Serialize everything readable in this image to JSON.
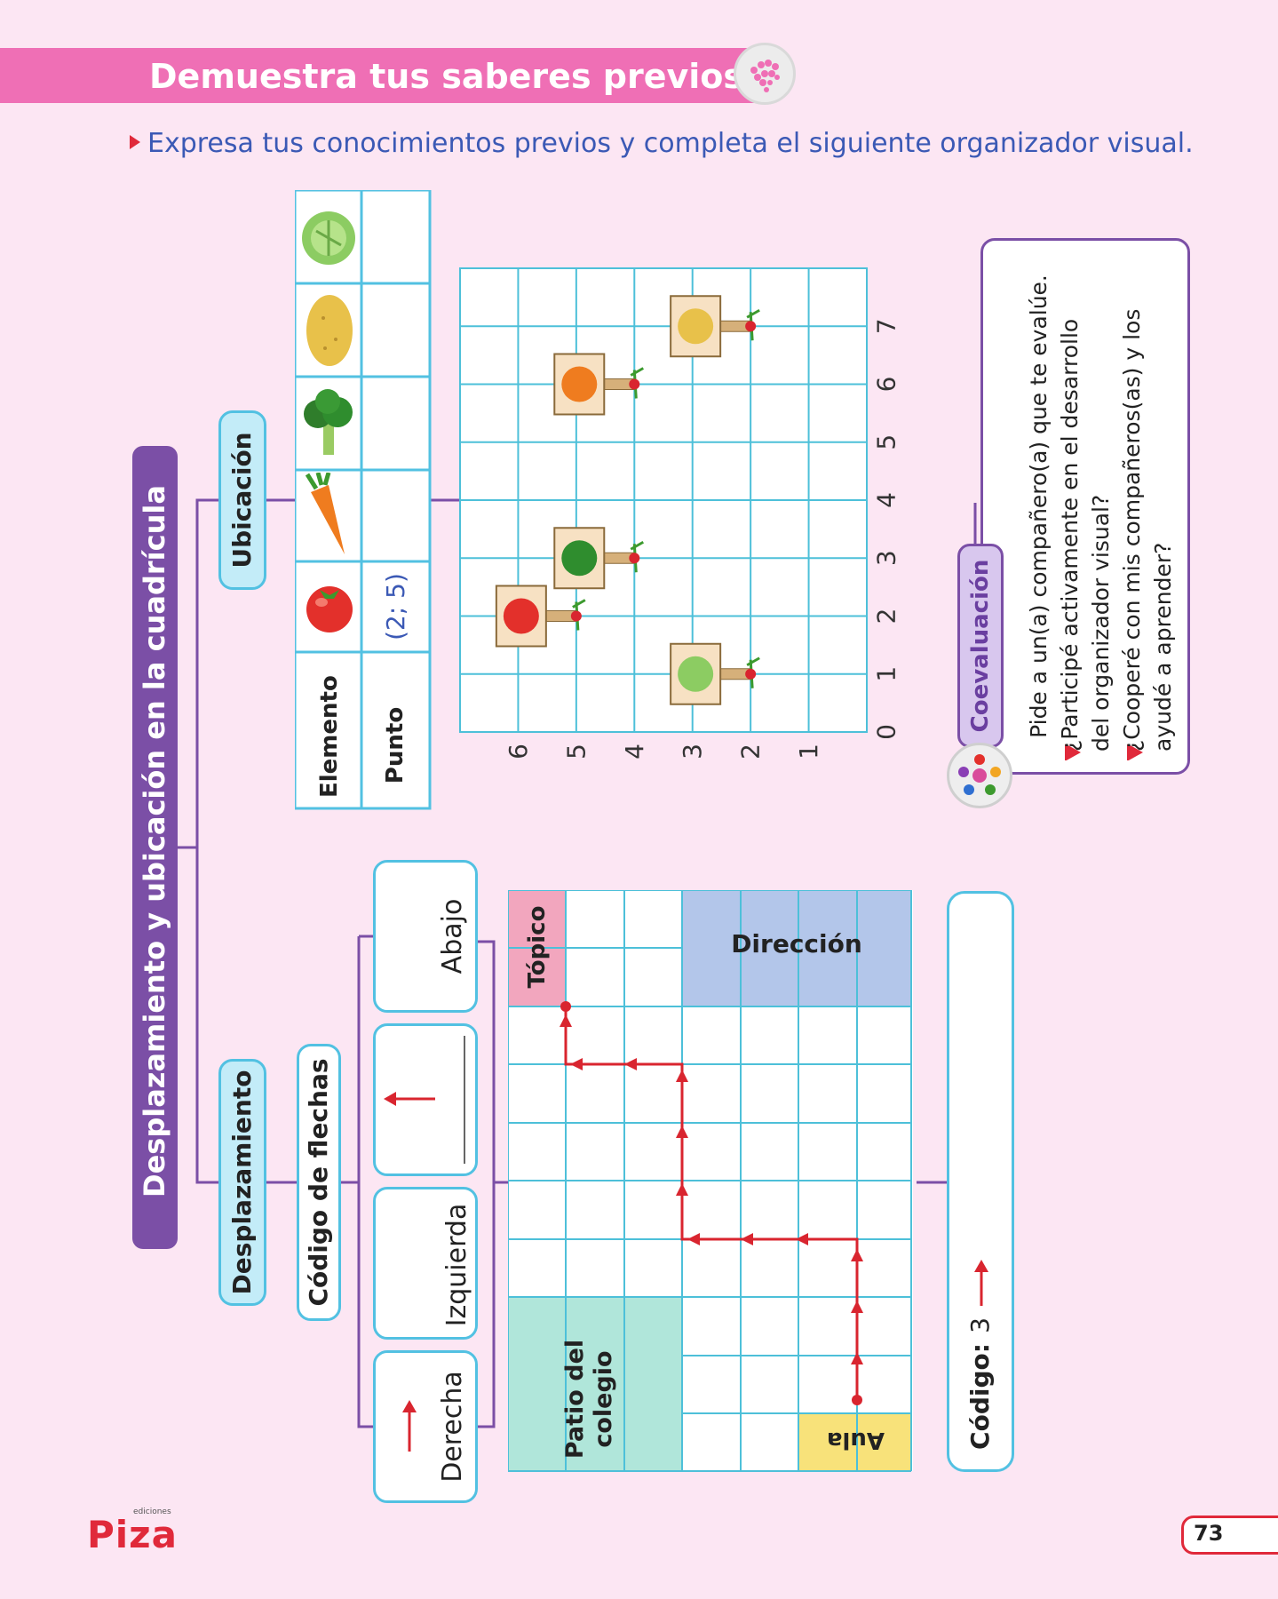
{
  "header": {
    "title": "Demuestra tus saberes previos",
    "instruction": "Expresa tus conocimientos previos y completa el siguiente organizador visual."
  },
  "main_title": "Desplazamiento y ubicación en la cuadrícula",
  "desplazamiento": {
    "label": "Desplazamiento",
    "sublabel": "Código de flechas",
    "arrow_cards": [
      "Derecha",
      "Izquierda",
      "",
      "Abajo"
    ],
    "map_labels": {
      "patio": "Patio del colegio",
      "direccion": "Dirección",
      "topico": "Tópico",
      "aula": "Aula"
    },
    "code_label": "Código:",
    "code_value": "3"
  },
  "ubicacion": {
    "label": "Ubicación",
    "table": {
      "row1_header": "Elemento",
      "row2_header": "Punto",
      "items": [
        "tomate",
        "zanahoria",
        "brócoli",
        "papa",
        "lechuga"
      ],
      "points": [
        "(2; 5)",
        "",
        "",
        "",
        ""
      ]
    },
    "chart_data": {
      "type": "scatter",
      "x_ticks": [
        "0",
        "1",
        "2",
        "3",
        "4",
        "5",
        "6",
        "7"
      ],
      "y_ticks": [
        "1",
        "2",
        "3",
        "4",
        "5",
        "6"
      ],
      "points": [
        {
          "item": "tomate",
          "x": 2,
          "y": 5
        },
        {
          "item": "brócoli",
          "x": 3,
          "y": 4
        },
        {
          "item": "zanahoria",
          "x": 6,
          "y": 4
        },
        {
          "item": "papa",
          "x": 7,
          "y": 2
        },
        {
          "item": "lechuga",
          "x": 1,
          "y": 2
        }
      ]
    }
  },
  "coevaluacion": {
    "label": "Coevaluación",
    "intro": "Pide a un(a) compañero(a) que te evalúe.",
    "q1_line1": "¿Participé activamente en el desarrollo",
    "q1_line2": "del organizador visual?",
    "q2_line1": "¿Cooperé con mis compañeros(as) y los",
    "q2_line2": "ayudé a aprender?"
  },
  "footer": {
    "logo": "Piza",
    "logo_small": "ediciones",
    "page_number": "73"
  },
  "colors": {
    "pink": "#ef6fb5",
    "purple": "#7b4fa6",
    "teal": "#b0e6da",
    "blue": "#b3c6ea",
    "grid": "#4dc0d9",
    "red": "#d9252f"
  }
}
